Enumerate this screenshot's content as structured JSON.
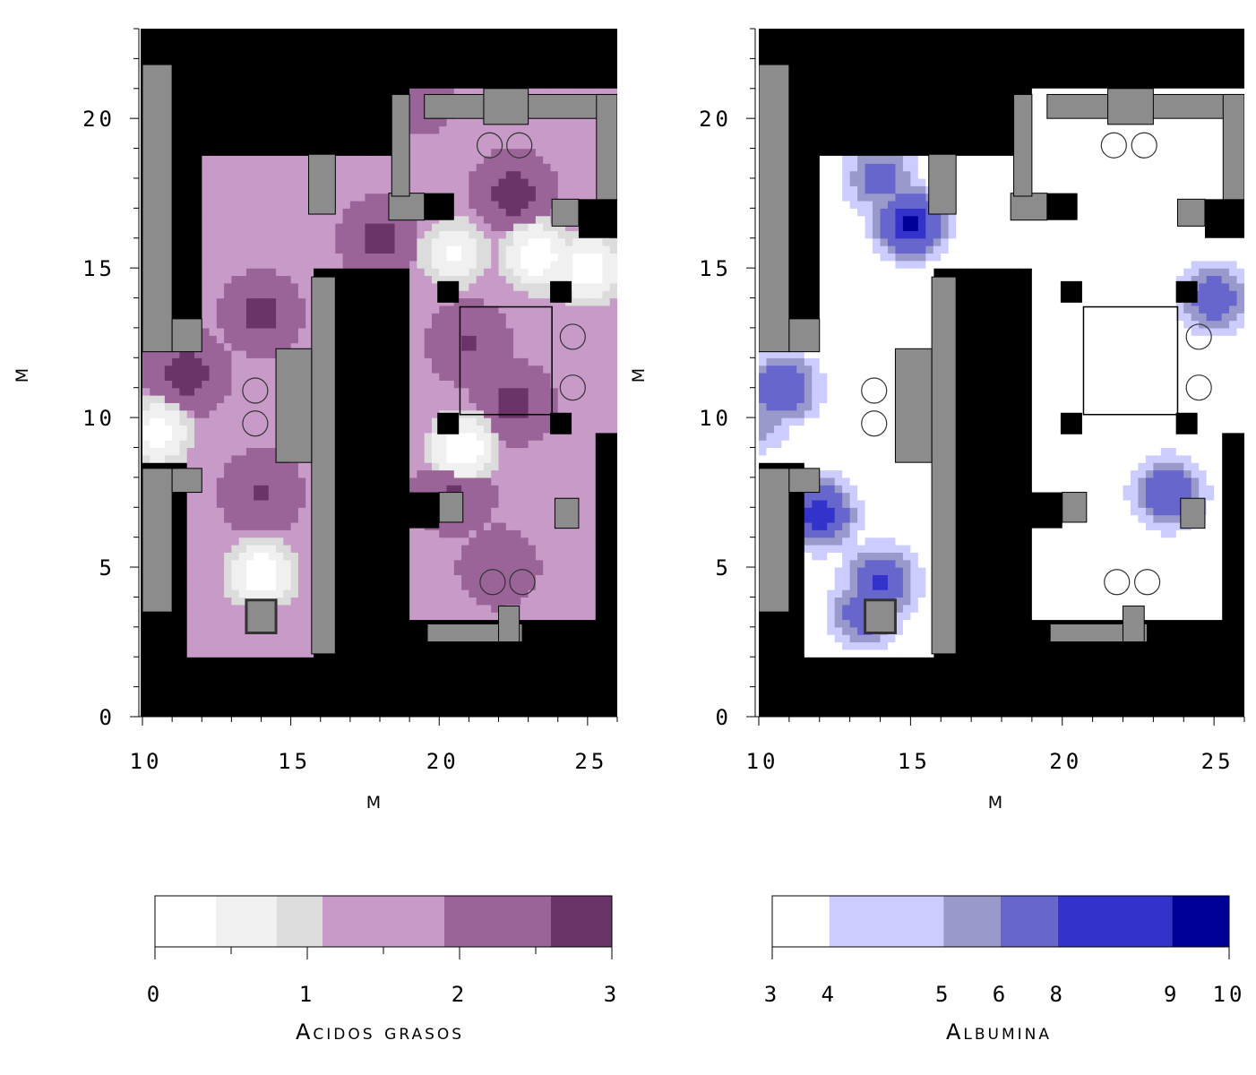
{
  "chart_data": [
    {
      "type": "heatmap",
      "panel": "left",
      "variable": "Acidos grasos",
      "xlabel": "M",
      "ylabel": "M",
      "xlim": [
        10,
        26
      ],
      "ylim": [
        0,
        23
      ],
      "xticks": [
        "10",
        "15",
        "20",
        "25"
      ],
      "yticks": [
        "0",
        "5",
        "10",
        "15",
        "20"
      ],
      "colorbar": {
        "title": "Acidos grasos",
        "ticks": [
          "0",
          "1",
          "2",
          "3"
        ],
        "levels": [
          0,
          0.4,
          0.8,
          1.1,
          1.9,
          2.6,
          3.0
        ],
        "colors": [
          "#ffffff",
          "#f0f0f0",
          "#dcdcdc",
          "#c89ac8",
          "#9a6498",
          "#6a3468"
        ]
      },
      "hotspots": [
        {
          "x": 14.0,
          "y": 13.5,
          "value": 2.8
        },
        {
          "x": 11.5,
          "y": 11.5,
          "value": 2.9
        },
        {
          "x": 19.5,
          "y": 20.5,
          "value": 2.2
        },
        {
          "x": 22.5,
          "y": 17.5,
          "value": 2.9
        },
        {
          "x": 22.5,
          "y": 10.5,
          "value": 2.8
        },
        {
          "x": 21.0,
          "y": 12.5,
          "value": 2.7
        },
        {
          "x": 20.5,
          "y": 7.5,
          "value": 2.7
        },
        {
          "x": 22.0,
          "y": 5.0,
          "value": 2.6
        },
        {
          "x": 14.0,
          "y": 7.5,
          "value": 2.7
        },
        {
          "x": 18.0,
          "y": 16.0,
          "value": 2.8
        },
        {
          "x": 14.0,
          "y": 4.8,
          "value": 0.1
        },
        {
          "x": 20.8,
          "y": 9.0,
          "value": 0.1
        },
        {
          "x": 23.3,
          "y": 15.4,
          "value": 0.1
        },
        {
          "x": 25.0,
          "y": 15.0,
          "value": 0.1
        },
        {
          "x": 20.5,
          "y": 15.5,
          "value": 0.3
        },
        {
          "x": 10.5,
          "y": 9.5,
          "value": 0.2
        }
      ]
    },
    {
      "type": "heatmap",
      "panel": "right",
      "variable": "Albumina",
      "xlabel": "M",
      "ylabel": "M",
      "xlim": [
        10,
        26
      ],
      "ylim": [
        0,
        23
      ],
      "xticks": [
        "10",
        "15",
        "20",
        "25"
      ],
      "yticks": [
        "0",
        "5",
        "10",
        "15",
        "20"
      ],
      "colorbar": {
        "title": "Albumina",
        "ticks": [
          "3",
          "4",
          "5",
          "6",
          "8",
          "9",
          "10"
        ],
        "levels": [
          3,
          4,
          5,
          6,
          8,
          9,
          10
        ],
        "colors": [
          "#ffffff",
          "#ccccff",
          "#9999cc",
          "#6666cc",
          "#3333cc",
          "#000099"
        ]
      },
      "hotspots": [
        {
          "x": 15.0,
          "y": 16.5,
          "value": 9.5
        },
        {
          "x": 14.0,
          "y": 18.0,
          "value": 7.0
        },
        {
          "x": 10.8,
          "y": 11.0,
          "value": 8.0
        },
        {
          "x": 12.0,
          "y": 6.8,
          "value": 9.0
        },
        {
          "x": 14.0,
          "y": 4.5,
          "value": 8.5
        },
        {
          "x": 13.5,
          "y": 3.5,
          "value": 7.5
        },
        {
          "x": 23.5,
          "y": 7.5,
          "value": 8.0
        },
        {
          "x": 25.0,
          "y": 14.0,
          "value": 7.5
        },
        {
          "x": 10.0,
          "y": 10.0,
          "value": 6.0
        }
      ]
    }
  ],
  "colors": {
    "wall_black": "#000000",
    "wall_gray": "#8c8c8c",
    "background": "#ffffff"
  }
}
